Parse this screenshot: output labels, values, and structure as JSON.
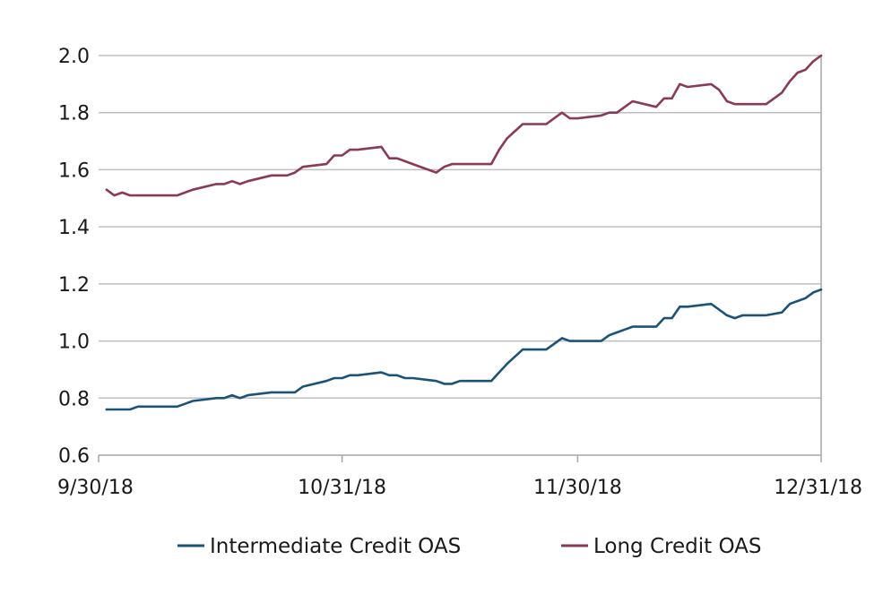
{
  "chart_data": {
    "type": "line",
    "title": "",
    "xlabel": "",
    "ylabel": "",
    "ylim": [
      0.6,
      2.0
    ],
    "yticks": [
      "0.6",
      "0.8",
      "1.0",
      "1.2",
      "1.4",
      "1.6",
      "1.8",
      "2.0"
    ],
    "xlim": [
      "2018-09-30",
      "2018-12-31"
    ],
    "xticks": [
      {
        "date": "2018-09-30",
        "label": "9/30/18"
      },
      {
        "date": "2018-10-31",
        "label": "10/31/18"
      },
      {
        "date": "2018-11-30",
        "label": "11/30/18"
      },
      {
        "date": "2018-12-31",
        "label": "12/31/18"
      }
    ],
    "grid": "horizontal",
    "legend": "bottom",
    "series": [
      {
        "name": "Intermediate Credit OAS",
        "color": "#1b5378",
        "points": [
          [
            "2018-10-01",
            0.76
          ],
          [
            "2018-10-02",
            0.76
          ],
          [
            "2018-10-03",
            0.76
          ],
          [
            "2018-10-04",
            0.76
          ],
          [
            "2018-10-05",
            0.77
          ],
          [
            "2018-10-08",
            0.77
          ],
          [
            "2018-10-09",
            0.77
          ],
          [
            "2018-10-10",
            0.77
          ],
          [
            "2018-10-11",
            0.78
          ],
          [
            "2018-10-12",
            0.79
          ],
          [
            "2018-10-15",
            0.8
          ],
          [
            "2018-10-16",
            0.8
          ],
          [
            "2018-10-17",
            0.81
          ],
          [
            "2018-10-18",
            0.8
          ],
          [
            "2018-10-19",
            0.81
          ],
          [
            "2018-10-22",
            0.82
          ],
          [
            "2018-10-23",
            0.82
          ],
          [
            "2018-10-24",
            0.82
          ],
          [
            "2018-10-25",
            0.82
          ],
          [
            "2018-10-26",
            0.84
          ],
          [
            "2018-10-29",
            0.86
          ],
          [
            "2018-10-30",
            0.87
          ],
          [
            "2018-10-31",
            0.87
          ],
          [
            "2018-11-01",
            0.88
          ],
          [
            "2018-11-02",
            0.88
          ],
          [
            "2018-11-05",
            0.89
          ],
          [
            "2018-11-06",
            0.88
          ],
          [
            "2018-11-07",
            0.88
          ],
          [
            "2018-11-08",
            0.87
          ],
          [
            "2018-11-09",
            0.87
          ],
          [
            "2018-11-12",
            0.86
          ],
          [
            "2018-11-13",
            0.85
          ],
          [
            "2018-11-14",
            0.85
          ],
          [
            "2018-11-15",
            0.86
          ],
          [
            "2018-11-16",
            0.86
          ],
          [
            "2018-11-19",
            0.86
          ],
          [
            "2018-11-20",
            0.89
          ],
          [
            "2018-11-21",
            0.92
          ],
          [
            "2018-11-23",
            0.97
          ],
          [
            "2018-11-26",
            0.97
          ],
          [
            "2018-11-27",
            0.99
          ],
          [
            "2018-11-28",
            1.01
          ],
          [
            "2018-11-29",
            1.0
          ],
          [
            "2018-11-30",
            1.0
          ],
          [
            "2018-12-03",
            1.0
          ],
          [
            "2018-12-04",
            1.02
          ],
          [
            "2018-12-05",
            1.03
          ],
          [
            "2018-12-06",
            1.04
          ],
          [
            "2018-12-07",
            1.05
          ],
          [
            "2018-12-10",
            1.05
          ],
          [
            "2018-12-11",
            1.08
          ],
          [
            "2018-12-12",
            1.08
          ],
          [
            "2018-12-13",
            1.12
          ],
          [
            "2018-12-14",
            1.12
          ],
          [
            "2018-12-17",
            1.13
          ],
          [
            "2018-12-18",
            1.11
          ],
          [
            "2018-12-19",
            1.09
          ],
          [
            "2018-12-20",
            1.08
          ],
          [
            "2018-12-21",
            1.09
          ],
          [
            "2018-12-24",
            1.09
          ],
          [
            "2018-12-26",
            1.1
          ],
          [
            "2018-12-27",
            1.13
          ],
          [
            "2018-12-28",
            1.14
          ],
          [
            "2018-12-29",
            1.15
          ],
          [
            "2018-12-30",
            1.17
          ],
          [
            "2018-12-31",
            1.18
          ]
        ]
      },
      {
        "name": "Long Credit OAS",
        "color": "#8a3a55",
        "points": [
          [
            "2018-10-01",
            1.53
          ],
          [
            "2018-10-02",
            1.51
          ],
          [
            "2018-10-03",
            1.52
          ],
          [
            "2018-10-04",
            1.51
          ],
          [
            "2018-10-05",
            1.51
          ],
          [
            "2018-10-08",
            1.51
          ],
          [
            "2018-10-09",
            1.51
          ],
          [
            "2018-10-10",
            1.51
          ],
          [
            "2018-10-11",
            1.52
          ],
          [
            "2018-10-12",
            1.53
          ],
          [
            "2018-10-15",
            1.55
          ],
          [
            "2018-10-16",
            1.55
          ],
          [
            "2018-10-17",
            1.56
          ],
          [
            "2018-10-18",
            1.55
          ],
          [
            "2018-10-19",
            1.56
          ],
          [
            "2018-10-22",
            1.58
          ],
          [
            "2018-10-23",
            1.58
          ],
          [
            "2018-10-24",
            1.58
          ],
          [
            "2018-10-25",
            1.59
          ],
          [
            "2018-10-26",
            1.61
          ],
          [
            "2018-10-29",
            1.62
          ],
          [
            "2018-10-30",
            1.65
          ],
          [
            "2018-10-31",
            1.65
          ],
          [
            "2018-11-01",
            1.67
          ],
          [
            "2018-11-02",
            1.67
          ],
          [
            "2018-11-05",
            1.68
          ],
          [
            "2018-11-06",
            1.64
          ],
          [
            "2018-11-07",
            1.64
          ],
          [
            "2018-11-08",
            1.63
          ],
          [
            "2018-11-09",
            1.62
          ],
          [
            "2018-11-12",
            1.59
          ],
          [
            "2018-11-13",
            1.61
          ],
          [
            "2018-11-14",
            1.62
          ],
          [
            "2018-11-15",
            1.62
          ],
          [
            "2018-11-16",
            1.62
          ],
          [
            "2018-11-19",
            1.62
          ],
          [
            "2018-11-20",
            1.67
          ],
          [
            "2018-11-21",
            1.71
          ],
          [
            "2018-11-23",
            1.76
          ],
          [
            "2018-11-26",
            1.76
          ],
          [
            "2018-11-27",
            1.78
          ],
          [
            "2018-11-28",
            1.8
          ],
          [
            "2018-11-29",
            1.78
          ],
          [
            "2018-11-30",
            1.78
          ],
          [
            "2018-12-03",
            1.79
          ],
          [
            "2018-12-04",
            1.8
          ],
          [
            "2018-12-05",
            1.8
          ],
          [
            "2018-12-06",
            1.82
          ],
          [
            "2018-12-07",
            1.84
          ],
          [
            "2018-12-10",
            1.82
          ],
          [
            "2018-12-11",
            1.85
          ],
          [
            "2018-12-12",
            1.85
          ],
          [
            "2018-12-13",
            1.9
          ],
          [
            "2018-12-14",
            1.89
          ],
          [
            "2018-12-17",
            1.9
          ],
          [
            "2018-12-18",
            1.88
          ],
          [
            "2018-12-19",
            1.84
          ],
          [
            "2018-12-20",
            1.83
          ],
          [
            "2018-12-21",
            1.83
          ],
          [
            "2018-12-24",
            1.83
          ],
          [
            "2018-12-26",
            1.87
          ],
          [
            "2018-12-27",
            1.91
          ],
          [
            "2018-12-28",
            1.94
          ],
          [
            "2018-12-29",
            1.95
          ],
          [
            "2018-12-30",
            1.98
          ],
          [
            "2018-12-31",
            2.0
          ]
        ]
      }
    ]
  }
}
